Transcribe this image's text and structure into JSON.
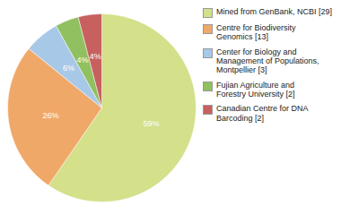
{
  "chart_data": {
    "type": "pie",
    "categories": [
      "Mined from GenBank, NCBI [29]",
      "Centre for Biodiversity\nGenomics [13]",
      "Center for Biology and\nManagement of Populations,\nMontpellier [3]",
      "Fujian Agriculture and\nForestry University [2]",
      "Canadian Centre for DNA\nBarcoding [2]"
    ],
    "values": [
      59,
      26,
      6,
      4,
      4
    ],
    "value_labels": [
      "59%",
      "26%",
      "6%",
      "4%",
      "4%"
    ],
    "colors": [
      "#d4e08a",
      "#f0a868",
      "#a8c8e8",
      "#90c060",
      "#c86060"
    ],
    "data_labels": true,
    "legend": "right"
  }
}
